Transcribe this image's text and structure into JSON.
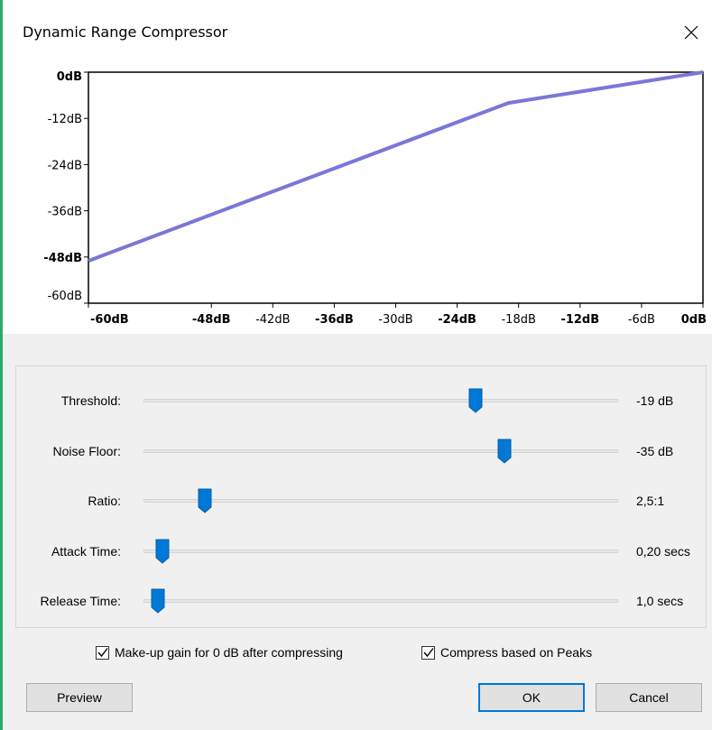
{
  "window": {
    "title": "Dynamic Range Compressor",
    "close_glyph": "✕"
  },
  "graph": {
    "y_labels": [
      {
        "text": "0dB",
        "bold": true
      },
      {
        "text": "-12dB",
        "bold": false
      },
      {
        "text": "-24dB",
        "bold": false
      },
      {
        "text": "-36dB",
        "bold": false
      },
      {
        "text": "-48dB",
        "bold": true
      },
      {
        "text": "-60dB",
        "bold": false
      }
    ],
    "x_labels": [
      {
        "text": "-60dB",
        "bold": true
      },
      {
        "text": "-48dB",
        "bold": true
      },
      {
        "text": "-42dB",
        "bold": false
      },
      {
        "text": "-36dB",
        "bold": true
      },
      {
        "text": "-30dB",
        "bold": false
      },
      {
        "text": "-24dB",
        "bold": true
      },
      {
        "text": "-18dB",
        "bold": false
      },
      {
        "text": "-12dB",
        "bold": true
      },
      {
        "text": "-6dB",
        "bold": false
      },
      {
        "text": "0dB",
        "bold": true
      }
    ],
    "curve_color": "#7878d8",
    "curve": [
      [
        -60,
        -49
      ],
      [
        -19,
        -8
      ],
      [
        0,
        0
      ]
    ]
  },
  "sliders": [
    {
      "label": "Threshold:",
      "value": "-19 dB",
      "position": 0.7
    },
    {
      "label": "Noise Floor:",
      "value": "-35 dB",
      "position": 0.76
    },
    {
      "label": "Ratio:",
      "value": "2,5:1",
      "position": 0.13
    },
    {
      "label": "Attack Time:",
      "value": "0,20 secs",
      "position": 0.04
    },
    {
      "label": "Release Time:",
      "value": "1,0 secs",
      "position": 0.03
    }
  ],
  "checkboxes": {
    "makeup": {
      "label": "Make-up gain for 0 dB after compressing",
      "checked": true
    },
    "peaks": {
      "label": "Compress based on Peaks",
      "checked": true
    }
  },
  "buttons": {
    "preview": "Preview",
    "ok": "OK",
    "cancel": "Cancel"
  },
  "colors": {
    "accent": "#0078d7",
    "thumb": "#0078d7"
  }
}
